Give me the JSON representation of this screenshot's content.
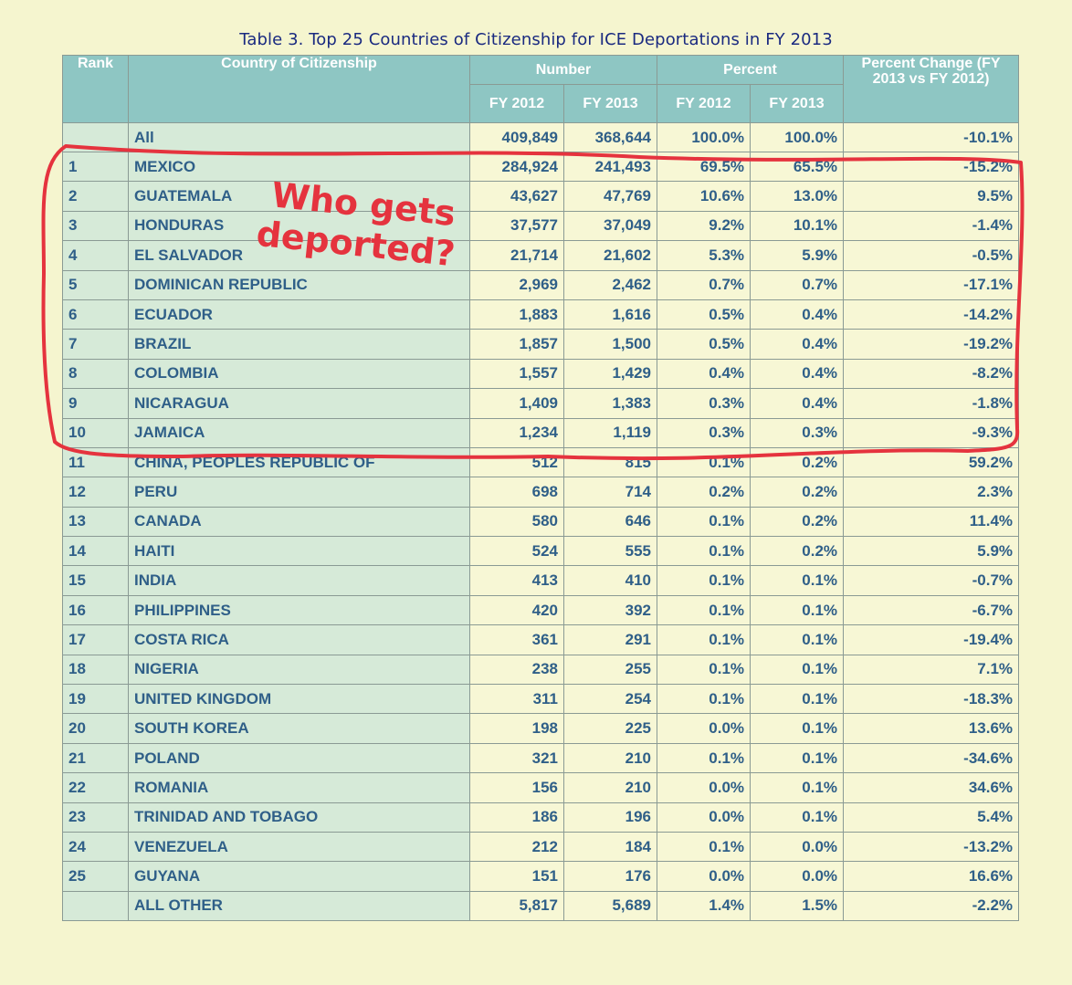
{
  "title": "Table 3. Top 25 Countries of Citizenship for ICE Deportations in FY 2013",
  "headers": {
    "rank": "Rank",
    "country": "Country of Citizenship",
    "number": "Number",
    "percent": "Percent",
    "percent_change": "Percent Change (FY 2013 vs FY 2012)",
    "fy2012": "FY 2012",
    "fy2013": "FY 2013"
  },
  "rows": [
    {
      "rank": "",
      "country": "All",
      "n2012": "409,849",
      "n2013": "368,644",
      "p2012": "100.0%",
      "p2013": "100.0%",
      "change": "-10.1%"
    },
    {
      "rank": "1",
      "country": "MEXICO",
      "n2012": "284,924",
      "n2013": "241,493",
      "p2012": "69.5%",
      "p2013": "65.5%",
      "change": "-15.2%"
    },
    {
      "rank": "2",
      "country": "GUATEMALA",
      "n2012": "43,627",
      "n2013": "47,769",
      "p2012": "10.6%",
      "p2013": "13.0%",
      "change": "9.5%"
    },
    {
      "rank": "3",
      "country": "HONDURAS",
      "n2012": "37,577",
      "n2013": "37,049",
      "p2012": "9.2%",
      "p2013": "10.1%",
      "change": "-1.4%"
    },
    {
      "rank": "4",
      "country": "EL SALVADOR",
      "n2012": "21,714",
      "n2013": "21,602",
      "p2012": "5.3%",
      "p2013": "5.9%",
      "change": "-0.5%"
    },
    {
      "rank": "5",
      "country": "DOMINICAN REPUBLIC",
      "n2012": "2,969",
      "n2013": "2,462",
      "p2012": "0.7%",
      "p2013": "0.7%",
      "change": "-17.1%"
    },
    {
      "rank": "6",
      "country": "ECUADOR",
      "n2012": "1,883",
      "n2013": "1,616",
      "p2012": "0.5%",
      "p2013": "0.4%",
      "change": "-14.2%"
    },
    {
      "rank": "7",
      "country": "BRAZIL",
      "n2012": "1,857",
      "n2013": "1,500",
      "p2012": "0.5%",
      "p2013": "0.4%",
      "change": "-19.2%"
    },
    {
      "rank": "8",
      "country": "COLOMBIA",
      "n2012": "1,557",
      "n2013": "1,429",
      "p2012": "0.4%",
      "p2013": "0.4%",
      "change": "-8.2%"
    },
    {
      "rank": "9",
      "country": "NICARAGUA",
      "n2012": "1,409",
      "n2013": "1,383",
      "p2012": "0.3%",
      "p2013": "0.4%",
      "change": "-1.8%"
    },
    {
      "rank": "10",
      "country": "JAMAICA",
      "n2012": "1,234",
      "n2013": "1,119",
      "p2012": "0.3%",
      "p2013": "0.3%",
      "change": "-9.3%"
    },
    {
      "rank": "11",
      "country": "CHINA, PEOPLES REPUBLIC OF",
      "n2012": "512",
      "n2013": "815",
      "p2012": "0.1%",
      "p2013": "0.2%",
      "change": "59.2%"
    },
    {
      "rank": "12",
      "country": "PERU",
      "n2012": "698",
      "n2013": "714",
      "p2012": "0.2%",
      "p2013": "0.2%",
      "change": "2.3%"
    },
    {
      "rank": "13",
      "country": "CANADA",
      "n2012": "580",
      "n2013": "646",
      "p2012": "0.1%",
      "p2013": "0.2%",
      "change": "11.4%"
    },
    {
      "rank": "14",
      "country": "HAITI",
      "n2012": "524",
      "n2013": "555",
      "p2012": "0.1%",
      "p2013": "0.2%",
      "change": "5.9%"
    },
    {
      "rank": "15",
      "country": "INDIA",
      "n2012": "413",
      "n2013": "410",
      "p2012": "0.1%",
      "p2013": "0.1%",
      "change": "-0.7%"
    },
    {
      "rank": "16",
      "country": "PHILIPPINES",
      "n2012": "420",
      "n2013": "392",
      "p2012": "0.1%",
      "p2013": "0.1%",
      "change": "-6.7%"
    },
    {
      "rank": "17",
      "country": "COSTA RICA",
      "n2012": "361",
      "n2013": "291",
      "p2012": "0.1%",
      "p2013": "0.1%",
      "change": "-19.4%"
    },
    {
      "rank": "18",
      "country": "NIGERIA",
      "n2012": "238",
      "n2013": "255",
      "p2012": "0.1%",
      "p2013": "0.1%",
      "change": "7.1%"
    },
    {
      "rank": "19",
      "country": "UNITED KINGDOM",
      "n2012": "311",
      "n2013": "254",
      "p2012": "0.1%",
      "p2013": "0.1%",
      "change": "-18.3%"
    },
    {
      "rank": "20",
      "country": "SOUTH KOREA",
      "n2012": "198",
      "n2013": "225",
      "p2012": "0.0%",
      "p2013": "0.1%",
      "change": "13.6%"
    },
    {
      "rank": "21",
      "country": "POLAND",
      "n2012": "321",
      "n2013": "210",
      "p2012": "0.1%",
      "p2013": "0.1%",
      "change": "-34.6%"
    },
    {
      "rank": "22",
      "country": "ROMANIA",
      "n2012": "156",
      "n2013": "210",
      "p2012": "0.0%",
      "p2013": "0.1%",
      "change": "34.6%"
    },
    {
      "rank": "23",
      "country": "TRINIDAD AND TOBAGO",
      "n2012": "186",
      "n2013": "196",
      "p2012": "0.0%",
      "p2013": "0.1%",
      "change": "5.4%"
    },
    {
      "rank": "24",
      "country": "VENEZUELA",
      "n2012": "212",
      "n2013": "184",
      "p2012": "0.1%",
      "p2013": "0.0%",
      "change": "-13.2%"
    },
    {
      "rank": "25",
      "country": "GUYANA",
      "n2012": "151",
      "n2013": "176",
      "p2012": "0.0%",
      "p2013": "0.0%",
      "change": "16.6%"
    },
    {
      "rank": "",
      "country": "ALL OTHER",
      "n2012": "5,817",
      "n2013": "5,689",
      "p2012": "1.4%",
      "p2013": "1.5%",
      "change": "-2.2%"
    }
  ],
  "annotation": {
    "line1": "Who gets",
    "line2": "deported?",
    "color": "#e5333e"
  }
}
